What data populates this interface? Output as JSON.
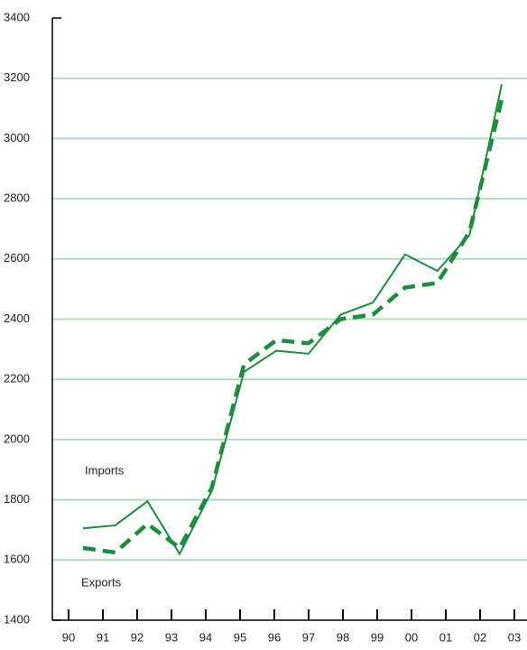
{
  "chart_data": {
    "type": "line",
    "categories": [
      "90",
      "91",
      "92",
      "93",
      "94",
      "95",
      "96",
      "97",
      "98",
      "99",
      "00",
      "01",
      "02",
      "03"
    ],
    "series": [
      {
        "name": "Imports",
        "color": "#1e8b3e",
        "linestyle": "solid",
        "values": [
          1705,
          1715,
          1795,
          1620,
          1830,
          2225,
          2295,
          2285,
          2415,
          2455,
          2615,
          2560,
          2680,
          3180
        ]
      },
      {
        "name": "Exports",
        "color": "#1e8b3e",
        "linestyle": "dashed",
        "values": [
          1640,
          1625,
          1720,
          1640,
          1840,
          2250,
          2330,
          2320,
          2400,
          2415,
          2505,
          2520,
          2690,
          3130
        ]
      }
    ],
    "ylim": [
      1400,
      3400
    ],
    "yticks": [
      1400,
      1600,
      1800,
      2000,
      2200,
      2400,
      2600,
      2800,
      3000,
      3200,
      3400
    ],
    "grid": true,
    "grid_color": "#b5dbbf"
  }
}
